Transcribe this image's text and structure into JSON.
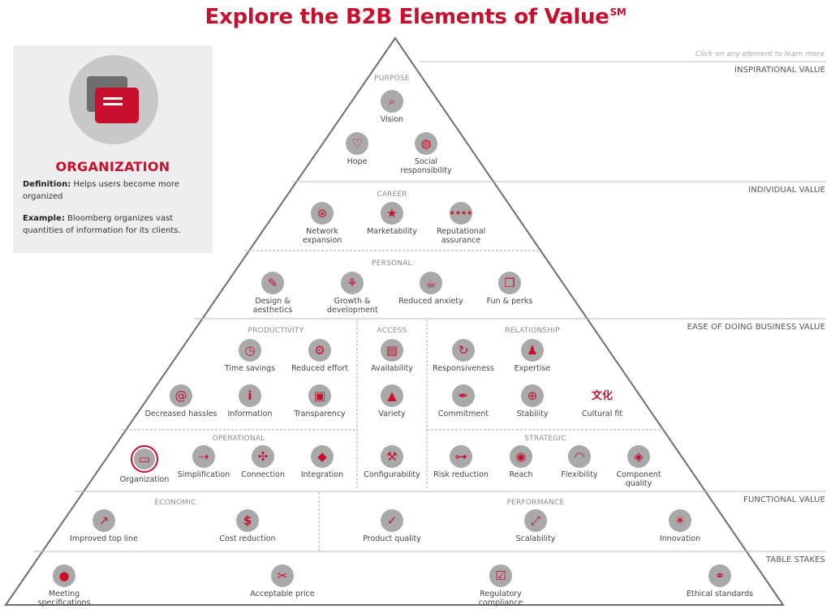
{
  "title": "Explore the B2B Elements of Value",
  "title_mark": "SM",
  "hint": "Click on any element to learn more",
  "accent_color": "#c8102e",
  "band_labels": {
    "inspirational": "INSPIRATIONAL VALUE",
    "individual": "INDIVIDUAL VALUE",
    "ease": "EASE OF DOING BUSINESS VALUE",
    "functional": "FUNCTIONAL VALUE",
    "table_stakes": "TABLE STAKES"
  },
  "groups": {
    "purpose": "PURPOSE",
    "career": "CAREER",
    "personal": "PERSONAL",
    "productivity": "PRODUCTIVITY",
    "access": "ACCESS",
    "relationship": "RELATIONSHIP",
    "operational": "OPERATIONAL",
    "strategic": "STRATEGIC",
    "economic": "ECONOMIC",
    "performance": "PERFORMANCE"
  },
  "elements": {
    "vision": {
      "label": "Vision",
      "icon": "telescope-icon"
    },
    "hope": {
      "label": "Hope",
      "icon": "ribbon-icon"
    },
    "social_responsibility": {
      "label": "Social responsibility",
      "icon": "globe-hands-icon"
    },
    "network_expansion": {
      "label": "Network expansion",
      "icon": "network-icon"
    },
    "marketability": {
      "label": "Marketability",
      "icon": "phone-star-icon"
    },
    "reputational_assurance": {
      "label": "Reputational assurance",
      "icon": "stars-rating-icon"
    },
    "design_aesthetics": {
      "label": "Design & aesthetics",
      "icon": "pencil-ruler-icon"
    },
    "growth_development": {
      "label": "Growth & development",
      "icon": "sprout-icon"
    },
    "reduced_anxiety": {
      "label": "Reduced anxiety",
      "icon": "tea-cup-icon"
    },
    "fun_perks": {
      "label": "Fun & perks",
      "icon": "gift-bag-icon"
    },
    "time_savings": {
      "label": "Time savings",
      "icon": "watch-icon"
    },
    "reduced_effort": {
      "label": "Reduced effort",
      "icon": "gears-icon"
    },
    "decreased_hassles": {
      "label": "Decreased hassles",
      "icon": "spiral-icon"
    },
    "information": {
      "label": "Information",
      "icon": "info-icon"
    },
    "transparency": {
      "label": "Transparency",
      "icon": "window-icon"
    },
    "availability": {
      "label": "Availability",
      "icon": "server-rack-icon"
    },
    "variety": {
      "label": "Variety",
      "icon": "shapes-icon"
    },
    "responsiveness": {
      "label": "Responsiveness",
      "icon": "refresh-arrows-icon"
    },
    "expertise": {
      "label": "Expertise",
      "icon": "expert-icon"
    },
    "commitment": {
      "label": "Commitment",
      "icon": "signature-pen-icon"
    },
    "stability": {
      "label": "Stability",
      "icon": "gyroscope-icon"
    },
    "cultural_fit": {
      "label": "Cultural fit",
      "icon": "culture-glyph-icon",
      "glyph": "文化"
    },
    "organization": {
      "label": "Organization",
      "icon": "folder-icon"
    },
    "simplification": {
      "label": "Simplification",
      "icon": "simplify-icon"
    },
    "connection": {
      "label": "Connection",
      "icon": "nodes-icon"
    },
    "integration": {
      "label": "Integration",
      "icon": "puzzle-icon"
    },
    "configurability": {
      "label": "Configurability",
      "icon": "wrench-icon"
    },
    "risk_reduction": {
      "label": "Risk reduction",
      "icon": "lock-chain-icon"
    },
    "reach": {
      "label": "Reach",
      "icon": "antenna-icon"
    },
    "flexibility": {
      "label": "Flexibility",
      "icon": "arcs-icon"
    },
    "component_quality": {
      "label": "Component quality",
      "icon": "diamond-icon"
    },
    "improved_top_line": {
      "label": "Improved top line",
      "icon": "growth-chart-icon"
    },
    "cost_reduction": {
      "label": "Cost reduction",
      "icon": "price-cut-icon"
    },
    "product_quality": {
      "label": "Product quality",
      "icon": "thumbs-up-icon"
    },
    "scalability": {
      "label": "Scalability",
      "icon": "scale-up-icon"
    },
    "innovation": {
      "label": "Innovation",
      "icon": "lightbulb-icon"
    },
    "meeting_specifications": {
      "label": "Meeting specifications",
      "icon": "spec-pin-icon"
    },
    "acceptable_price": {
      "label": "Acceptable price",
      "icon": "price-tag-icon"
    },
    "regulatory_compliance": {
      "label": "Regulatory compliance",
      "icon": "checklist-icon"
    },
    "ethical_standards": {
      "label": "Ethical standards",
      "icon": "handshake-icon"
    }
  },
  "selected": "organization",
  "detail": {
    "name": "ORGANIZATION",
    "icon": "folder-icon",
    "definition_label": "Definition:",
    "definition": "Helps users become more organized",
    "example_label": "Example:",
    "example": "Bloomberg organizes vast quantities of information for its clients."
  }
}
